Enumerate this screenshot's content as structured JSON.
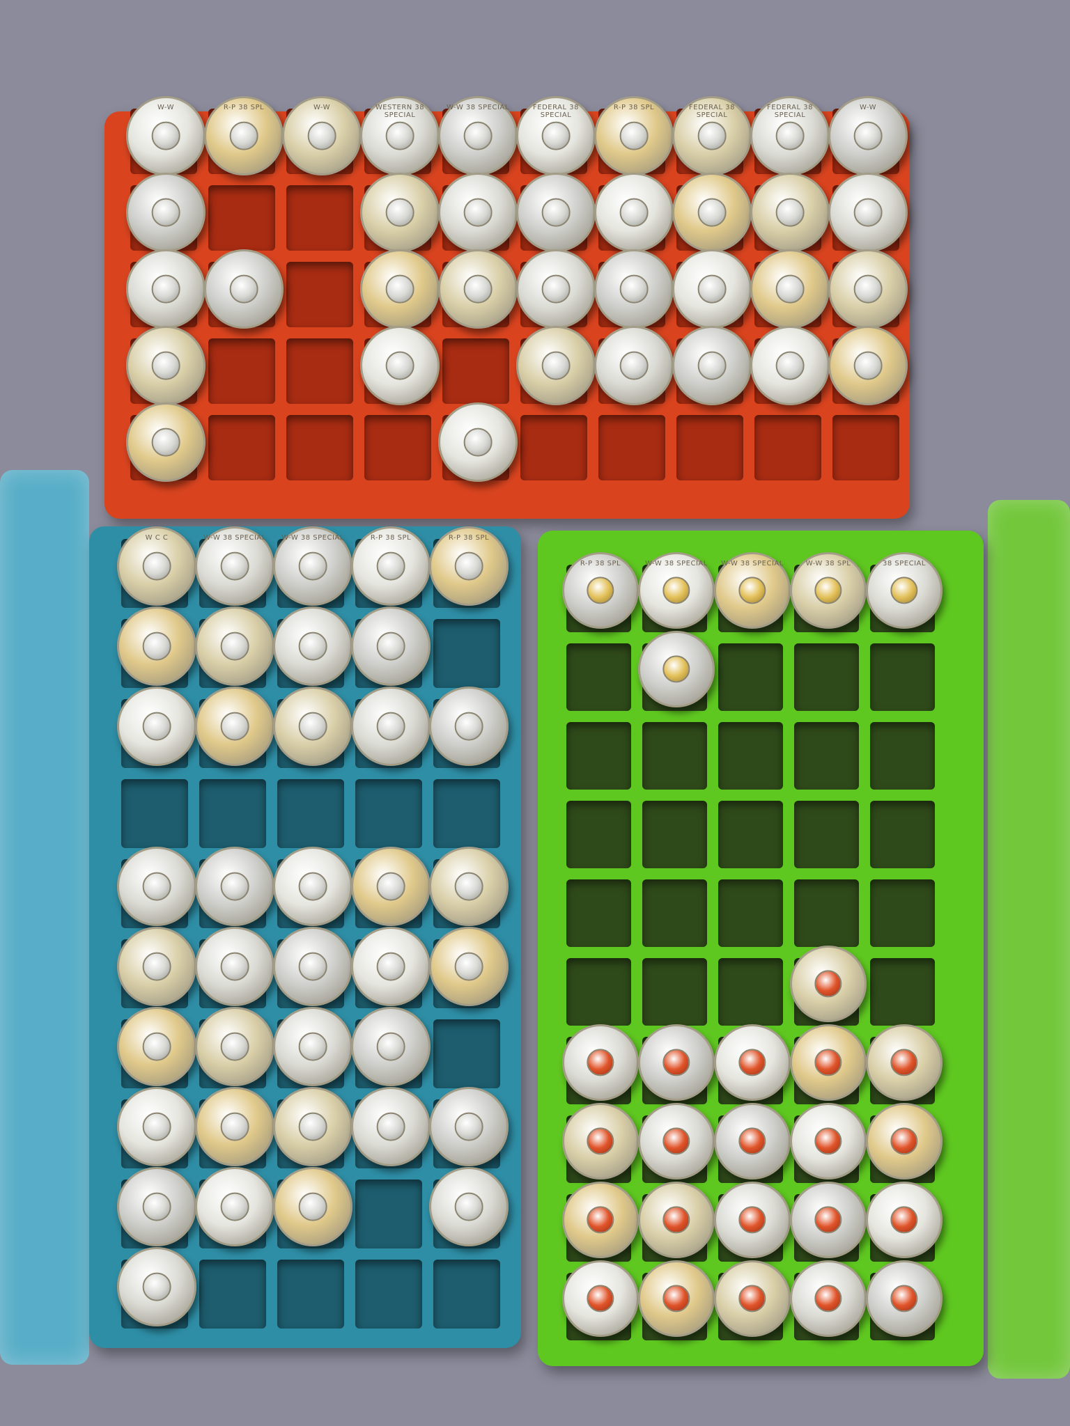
{
  "scene": {
    "background_color": "#8c8b9b",
    "subject": "38 Special cartridge cases in plastic ammo boxes"
  },
  "boxes": [
    {
      "id": "red",
      "color": "#d9441f",
      "cell_color": "#a82c12",
      "columns": 10,
      "rows": 5,
      "occupancy": [
        [
          1,
          1,
          1,
          1,
          1,
          1,
          1,
          1,
          1,
          1
        ],
        [
          1,
          0,
          0,
          1,
          1,
          1,
          1,
          1,
          1,
          1
        ],
        [
          1,
          1,
          0,
          1,
          1,
          1,
          1,
          1,
          1,
          1
        ],
        [
          1,
          0,
          0,
          1,
          0,
          1,
          1,
          1,
          1,
          1
        ],
        [
          1,
          0,
          0,
          0,
          1,
          0,
          0,
          0,
          0,
          0
        ]
      ],
      "primer": "silver",
      "headstamps": [
        "W-W",
        "R-P 38 SPL",
        "W-W",
        "WESTERN 38 SPECIAL",
        "W-W 38 SPECIAL",
        "FEDERAL 38 SPECIAL",
        "R-P 38 SPL",
        "FEDERAL 38 SPECIAL",
        "FEDERAL 38 SPECIAL",
        "W-W"
      ]
    },
    {
      "id": "blue",
      "color": "#2e8ea6",
      "cell_color": "#1d5d6e",
      "lid_color": "#4fb5d0",
      "columns": 5,
      "rows": 10,
      "occupancy": [
        [
          1,
          1,
          1,
          1,
          1
        ],
        [
          1,
          1,
          1,
          1,
          0
        ],
        [
          1,
          1,
          1,
          1,
          1
        ],
        [
          0,
          0,
          0,
          0,
          0
        ],
        [
          1,
          1,
          1,
          1,
          1
        ],
        [
          1,
          1,
          1,
          1,
          1
        ],
        [
          1,
          1,
          1,
          1,
          0
        ],
        [
          1,
          1,
          1,
          1,
          1
        ],
        [
          1,
          1,
          1,
          0,
          1
        ],
        [
          1,
          0,
          0,
          0,
          0
        ]
      ],
      "primer": "silver",
      "headstamps": [
        "W C C",
        "W-W 38 SPECIAL",
        "W-W 38 SPECIAL",
        "R-P 38 SPL",
        "R-P 38 SPL"
      ]
    },
    {
      "id": "green",
      "color": "#5fc820",
      "cell_color": "#2f4a1a",
      "lid_color": "#6ed22a",
      "columns": 5,
      "rows": 10,
      "occupancy": [
        [
          1,
          1,
          1,
          1,
          1
        ],
        [
          0,
          1,
          0,
          0,
          0
        ],
        [
          0,
          0,
          0,
          0,
          0
        ],
        [
          0,
          0,
          0,
          0,
          0
        ],
        [
          0,
          0,
          0,
          0,
          0
        ],
        [
          0,
          0,
          0,
          1,
          0
        ],
        [
          1,
          1,
          1,
          1,
          1
        ],
        [
          1,
          1,
          1,
          1,
          1
        ],
        [
          1,
          1,
          1,
          1,
          1
        ],
        [
          1,
          1,
          1,
          1,
          1
        ]
      ],
      "primer_upper": "brass",
      "primer_lower": "red",
      "headstamps": [
        "R-P 38 SPL",
        "W-W 38 SPECIAL",
        "W-W 38 SPECIAL",
        "W-W 38 SPL",
        "38 SPECIAL"
      ]
    }
  ]
}
